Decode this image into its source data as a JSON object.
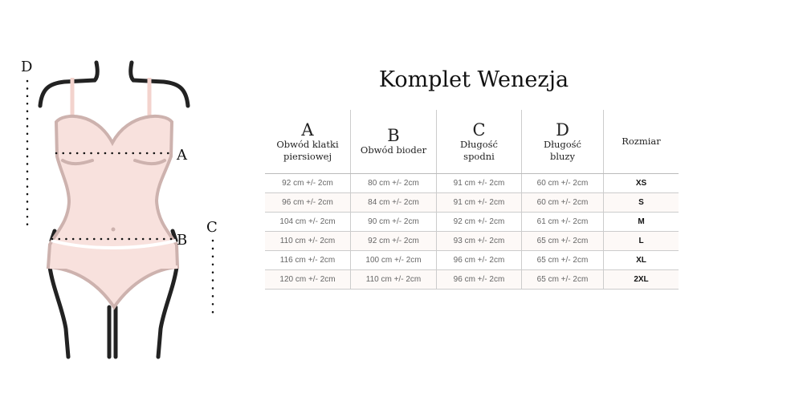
{
  "title": "Komplet Wenezja",
  "figure": {
    "labels": [
      "A",
      "B",
      "C",
      "D"
    ],
    "colors": {
      "fabric": "#f8e1dd",
      "seam": "#cdb2ae",
      "outline": "#222222",
      "strap": "#f3d3cd"
    }
  },
  "table": {
    "headers": [
      {
        "letter": "A",
        "label": "Obwód klatki piersiowej"
      },
      {
        "letter": "B",
        "label": "Obwód bioder"
      },
      {
        "letter": "C",
        "label": "Długość spodni"
      },
      {
        "letter": "D",
        "label": "Długość bluzy"
      },
      {
        "letter": "",
        "label": "Rozmiar"
      }
    ],
    "rows": [
      [
        "92 cm +/- 2cm",
        "80 cm +/- 2cm",
        "91 cm +/- 2cm",
        "60 cm +/- 2cm",
        "XS"
      ],
      [
        "96 cm +/- 2cm",
        "84 cm +/- 2cm",
        "91 cm +/- 2cm",
        "60 cm +/- 2cm",
        "S"
      ],
      [
        "104 cm +/- 2cm",
        "90 cm +/- 2cm",
        "92 cm +/- 2cm",
        "61 cm +/- 2cm",
        "M"
      ],
      [
        "110 cm +/- 2cm",
        "92 cm +/- 2cm",
        "93 cm +/- 2cm",
        "65 cm +/- 2cm",
        "L"
      ],
      [
        "116 cm +/- 2cm",
        "100 cm +/- 2cm",
        "96 cm +/- 2cm",
        "65 cm +/- 2cm",
        "XL"
      ],
      [
        "120 cm +/- 2cm",
        "110 cm +/- 2cm",
        "96 cm +/- 2cm",
        "65 cm +/- 2cm",
        "2XL"
      ]
    ]
  }
}
